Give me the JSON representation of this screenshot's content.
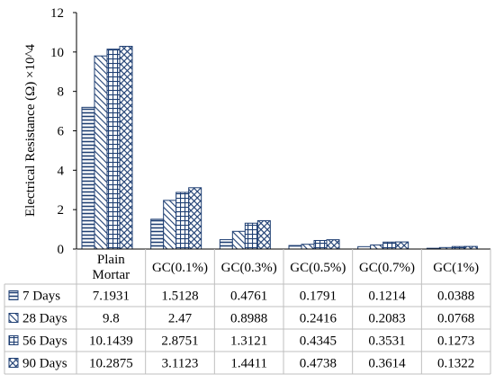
{
  "chart_data": {
    "type": "bar",
    "ylabel": "Electrical Resistance (Ω) ×10^4",
    "ylim": [
      0,
      12
    ],
    "yticks": [
      0,
      2,
      4,
      6,
      8,
      10,
      12
    ],
    "grid": false,
    "legend": "data-table",
    "categories": [
      "Plain Mortar",
      "GC(0.1%)",
      "GC(0.3%)",
      "GC(0.5%)",
      "GC(0.7%)",
      "GC(1%)"
    ],
    "series": [
      {
        "name": "7 Days",
        "pattern": "horizontal-lines",
        "values": [
          7.1931,
          1.5128,
          0.4761,
          0.1791,
          0.1214,
          0.0388
        ],
        "labels": [
          "7.1931",
          "1.5128",
          "0.4761",
          "0.1791",
          "0.1214",
          "0.0388"
        ]
      },
      {
        "name": "28 Days",
        "pattern": "diagonal-lines",
        "values": [
          9.8,
          2.47,
          0.8988,
          0.2416,
          0.2083,
          0.0768
        ],
        "labels": [
          "9.8",
          "2.47",
          "0.8988",
          "0.2416",
          "0.2083",
          "0.0768"
        ]
      },
      {
        "name": "56 Days",
        "pattern": "grid",
        "values": [
          10.1439,
          2.8751,
          1.3121,
          0.4345,
          0.3531,
          0.1273
        ],
        "labels": [
          "10.1439",
          "2.8751",
          "1.3121",
          "0.4345",
          "0.3531",
          "0.1273"
        ]
      },
      {
        "name": "90 Days",
        "pattern": "checker",
        "values": [
          10.2875,
          3.1123,
          1.4411,
          0.4738,
          0.3614,
          0.1322
        ],
        "labels": [
          "10.2875",
          "3.1123",
          "1.4411",
          "0.4738",
          "0.3614",
          "0.1322"
        ]
      }
    ]
  },
  "colors": {
    "bar_stroke": "#1f3f73",
    "bar_fill": "#ffffff",
    "axis": "#000000",
    "table_border": "#bfbfbf"
  }
}
